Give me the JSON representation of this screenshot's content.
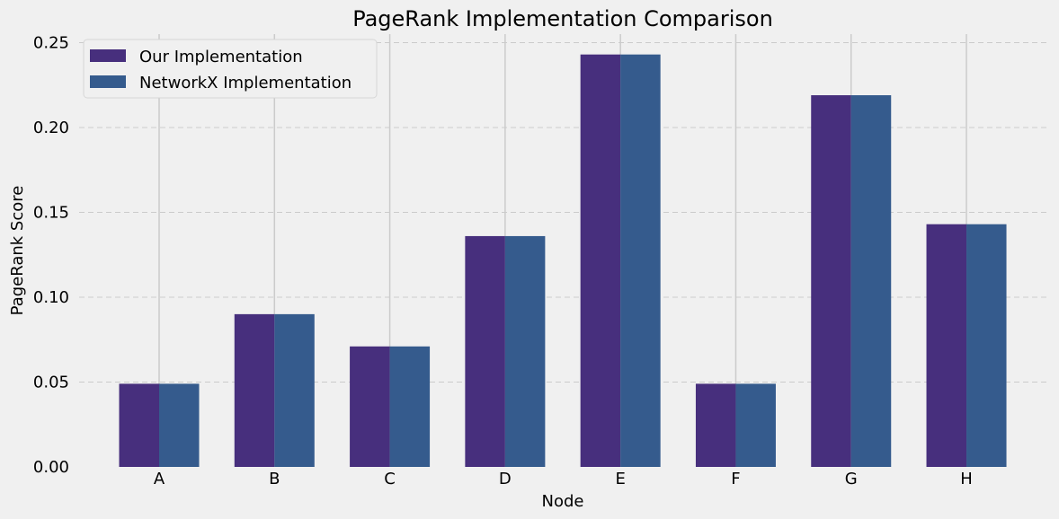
{
  "chart_data": {
    "type": "bar",
    "title": "PageRank Implementation Comparison",
    "xlabel": "Node",
    "ylabel": "PageRank Score",
    "categories": [
      "A",
      "B",
      "C",
      "D",
      "E",
      "F",
      "G",
      "H"
    ],
    "series": [
      {
        "name": "Our Implementation",
        "color": "#472f7d",
        "values": [
          0.049,
          0.09,
          0.071,
          0.136,
          0.243,
          0.049,
          0.219,
          0.143
        ]
      },
      {
        "name": "NetworkX Implementation",
        "color": "#355b8d",
        "values": [
          0.049,
          0.09,
          0.071,
          0.136,
          0.243,
          0.049,
          0.219,
          0.143
        ]
      }
    ],
    "ylim": [
      0,
      0.255
    ],
    "yticks": [
      "0.00",
      "0.05",
      "0.10",
      "0.15",
      "0.20",
      "0.25"
    ],
    "grid": true,
    "legend_position": "top-left"
  }
}
